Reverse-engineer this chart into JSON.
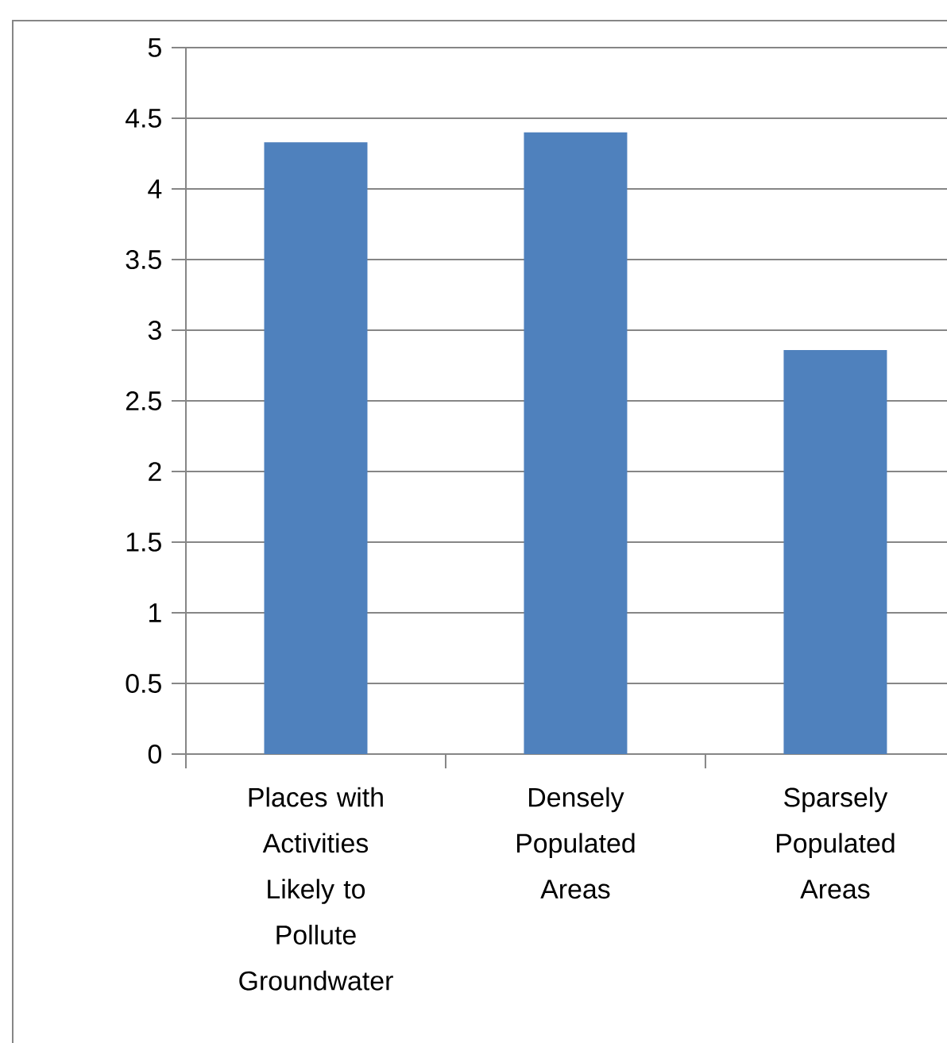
{
  "chart_data": {
    "type": "bar",
    "categories": [
      "Places with Activities Likely to Pollute Groundwater",
      "Densely Populated Areas",
      "Sparsely Populated Areas"
    ],
    "values": [
      4.33,
      4.4,
      2.86
    ],
    "color": "#4f81bd",
    "ylim": [
      0,
      5
    ],
    "yticks": [
      0,
      0.5,
      1,
      1.5,
      2,
      2.5,
      3,
      3.5,
      4,
      4.5,
      5
    ],
    "grid": "y"
  }
}
